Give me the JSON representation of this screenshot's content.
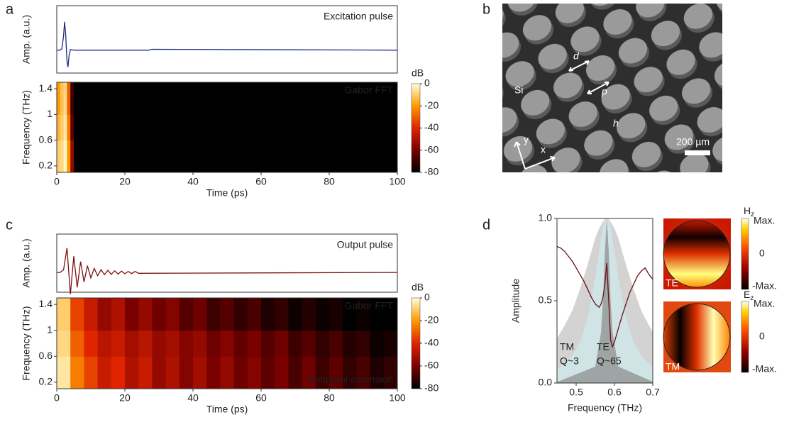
{
  "panel_labels": [
    "a",
    "b",
    "c",
    "d"
  ],
  "chart_data": [
    {
      "type": "line",
      "title": "Excitation pulse",
      "ylabel": "Amp. (a.u.)",
      "color": "#1c2b82",
      "x": [
        0,
        1,
        1.5,
        2,
        2.3,
        2.6,
        3,
        3.3,
        3.6,
        4,
        5,
        6,
        27,
        28,
        100
      ],
      "values": [
        0,
        0,
        0.05,
        0.5,
        1,
        0.6,
        -0.4,
        -0.6,
        -0.2,
        0.02,
        0,
        0,
        0,
        0.03,
        0
      ]
    },
    {
      "type": "heatmap",
      "title": "Gabor FFT",
      "xlabel": "Time (ps)",
      "ylabel": "Frequency (THz)",
      "xbins": [
        0,
        1,
        2,
        3,
        4,
        5,
        100
      ],
      "ybins": [
        0.1,
        0.6,
        1.0,
        1.5
      ],
      "z": [
        [
          -10,
          -8,
          -2,
          -20,
          -55,
          -80
        ],
        [
          -15,
          -10,
          -5,
          -25,
          -65,
          -80
        ],
        [
          -20,
          -12,
          -8,
          -30,
          -70,
          -80
        ]
      ],
      "xlim": [
        0,
        100
      ],
      "xticks": [
        0,
        20,
        40,
        60,
        80,
        100
      ],
      "ylim": [
        0.1,
        1.5
      ],
      "yticks": [
        0.2,
        0.6,
        1,
        1.4
      ],
      "colorbar_label": "dB",
      "clim": [
        -80,
        0
      ],
      "cticks": [
        0,
        -20,
        -40,
        -60,
        -80
      ],
      "colormap": [
        "#000000",
        "#7a0000",
        "#e02400",
        "#ff9a00",
        "#ffffd8"
      ]
    },
    {
      "type": "line",
      "title": "Output pulse",
      "ylabel": "Amp. (a.u.)",
      "color": "#7a1010",
      "x": [
        0,
        1,
        2,
        3,
        4,
        5,
        6,
        7,
        8,
        9,
        10,
        11,
        12,
        13,
        14,
        15,
        16,
        17,
        18,
        19,
        20,
        21,
        22,
        23,
        24,
        100
      ],
      "values": [
        0,
        0,
        0.1,
        0.9,
        -0.8,
        0.6,
        -0.55,
        0.4,
        -0.35,
        0.25,
        -0.2,
        0.15,
        -0.12,
        0.1,
        -0.08,
        0.08,
        -0.07,
        0.06,
        -0.06,
        0.05,
        -0.05,
        0.04,
        -0.04,
        0.04,
        -0.03,
        0
      ]
    },
    {
      "type": "heatmap",
      "title": "Gabor FFT",
      "annotation": "Temporal extension",
      "xlabel": "Time (ps)",
      "ylabel": "Frequency (THz)",
      "xbins": [
        0,
        4,
        8,
        12,
        16,
        20,
        24,
        28,
        32,
        36,
        40,
        44,
        48,
        52,
        56,
        60,
        64,
        68,
        72,
        76,
        80,
        84,
        88,
        92,
        96,
        100
      ],
      "ybins": [
        0.1,
        0.6,
        1.0,
        1.5
      ],
      "z": [
        [
          -5,
          -25,
          -35,
          -45,
          -40,
          -50,
          -45,
          -55,
          -50,
          -58,
          -52,
          -60,
          -55,
          -62,
          -58,
          -65,
          -60,
          -68,
          -62,
          -70,
          -65,
          -72,
          -68,
          -75,
          -72
        ],
        [
          -8,
          -30,
          -40,
          -48,
          -45,
          -52,
          -48,
          -55,
          -52,
          -58,
          -55,
          -62,
          -58,
          -64,
          -60,
          -66,
          -62,
          -70,
          -66,
          -72,
          -68,
          -74,
          -72,
          -78,
          -76
        ],
        [
          -10,
          -35,
          -45,
          -55,
          -50,
          -60,
          -55,
          -62,
          -58,
          -66,
          -62,
          -70,
          -66,
          -72,
          -68,
          -75,
          -72,
          -78,
          -74,
          -78,
          -76,
          -80,
          -78,
          -80,
          -80
        ]
      ],
      "xlim": [
        0,
        100
      ],
      "xticks": [
        0,
        20,
        40,
        60,
        80,
        100
      ],
      "ylim": [
        0.1,
        1.5
      ],
      "yticks": [
        0.2,
        0.6,
        1,
        1.4
      ],
      "colorbar_label": "dB",
      "clim": [
        -80,
        0
      ],
      "cticks": [
        0,
        -20,
        -40,
        -60,
        -80
      ],
      "colormap": [
        "#000000",
        "#7a0000",
        "#e02400",
        "#ff9a00",
        "#ffffd8"
      ]
    },
    {
      "type": "spectrum",
      "xlabel": "Frequency (THz)",
      "ylabel": "Amplitude",
      "xlim": [
        0.45,
        0.7
      ],
      "xticks": [
        0.5,
        0.6,
        0.7
      ],
      "ylim": [
        0,
        1
      ],
      "yticks": [
        {
          "value": 0,
          "label": "0.0"
        },
        {
          "value": 0.5,
          "label": "0.5"
        },
        {
          "value": 1,
          "label": "1.0"
        }
      ],
      "series": [
        {
          "fill": true,
          "color": "#c4c4c4",
          "x": [
            0.45,
            0.47,
            0.49,
            0.51,
            0.53,
            0.55,
            0.56,
            0.57,
            0.575,
            0.58,
            0.585,
            0.59,
            0.6,
            0.61,
            0.63,
            0.65,
            0.67,
            0.69,
            0.7
          ],
          "values": [
            0.27,
            0.35,
            0.44,
            0.57,
            0.72,
            0.88,
            0.94,
            0.98,
            0.996,
            1,
            0.996,
            0.98,
            0.94,
            0.88,
            0.72,
            0.57,
            0.44,
            0.35,
            0.31
          ]
        },
        {
          "fill": true,
          "color": "#cfeaec",
          "x": [
            0.45,
            0.47,
            0.49,
            0.51,
            0.53,
            0.55,
            0.56,
            0.57,
            0.575,
            0.58,
            0.585,
            0.59,
            0.6,
            0.61,
            0.63,
            0.65,
            0.67,
            0.69,
            0.7
          ],
          "values": [
            0.086,
            0.117,
            0.165,
            0.246,
            0.39,
            0.64,
            0.8,
            0.94,
            0.985,
            1,
            0.985,
            0.94,
            0.8,
            0.64,
            0.39,
            0.246,
            0.165,
            0.117,
            0.1
          ]
        },
        {
          "fill": true,
          "color": "#8f8f8f",
          "x": [
            0.45,
            0.55,
            0.565,
            0.57,
            0.575,
            0.58,
            0.585,
            0.59,
            0.595,
            0.61,
            0.7
          ],
          "values": [
            0.006,
            0.1,
            0.31,
            0.5,
            0.8,
            1,
            0.8,
            0.5,
            0.31,
            0.1,
            0.008
          ]
        },
        {
          "fill": false,
          "color": "#6a0f0f",
          "x": [
            0.45,
            0.46,
            0.47,
            0.48,
            0.49,
            0.5,
            0.51,
            0.52,
            0.53,
            0.54,
            0.55,
            0.56,
            0.565,
            0.57,
            0.575,
            0.58,
            0.585,
            0.59,
            0.595,
            0.6,
            0.61,
            0.62,
            0.63,
            0.64,
            0.65,
            0.66,
            0.67,
            0.68,
            0.69,
            0.7
          ],
          "values": [
            0.83,
            0.82,
            0.8,
            0.77,
            0.74,
            0.7,
            0.66,
            0.62,
            0.57,
            0.52,
            0.48,
            0.46,
            0.48,
            0.52,
            0.6,
            0.73,
            0.5,
            0.26,
            0.22,
            0.25,
            0.33,
            0.41,
            0.48,
            0.55,
            0.6,
            0.65,
            0.68,
            0.7,
            0.66,
            0.63
          ]
        }
      ],
      "annotations": [
        "TM",
        "Q~3",
        "TE",
        "Q~65"
      ]
    }
  ],
  "sem_image": {
    "material": "Si",
    "labels": [
      "d",
      "p",
      "h"
    ],
    "axes": [
      "x",
      "y"
    ],
    "scale_bar": "200 µm"
  },
  "mode_maps": [
    {
      "field": "H",
      "sub": "z",
      "mode": "TE",
      "ticks": [
        "Max.",
        "0",
        "-Max."
      ]
    },
    {
      "field": "E",
      "sub": "z",
      "mode": "TM",
      "ticks": [
        "Max.",
        "0",
        "-Max."
      ]
    }
  ]
}
